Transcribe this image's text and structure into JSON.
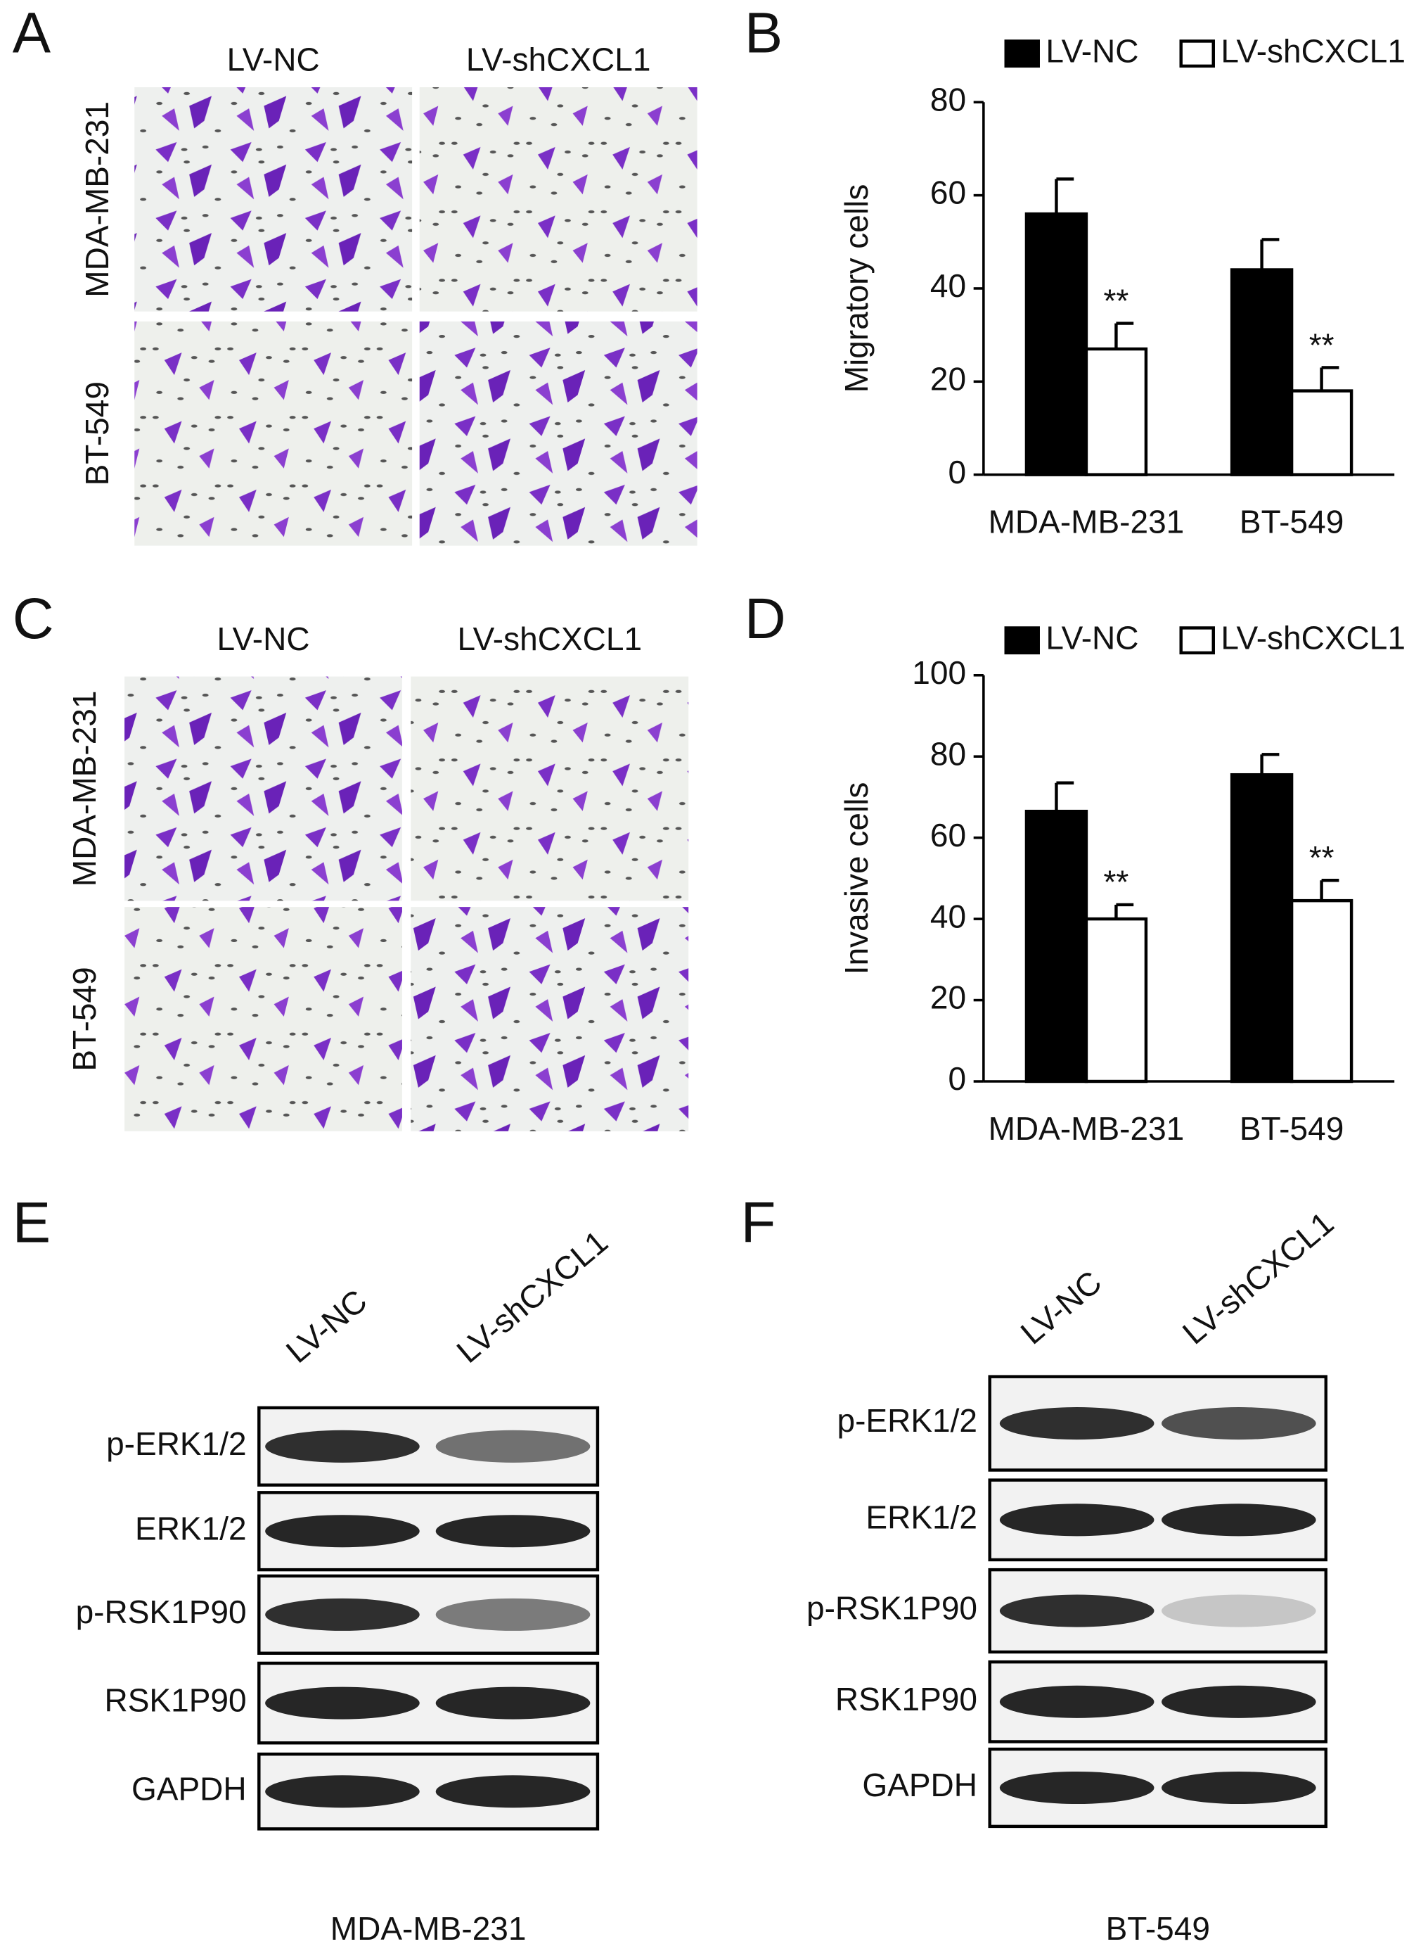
{
  "panel_labels": [
    "A",
    "B",
    "C",
    "D",
    "E",
    "F"
  ],
  "panel_a": {
    "columns": [
      "LV-NC",
      "LV-shCXCL1"
    ],
    "rows": [
      "MDA-MB-231",
      "BT-549"
    ]
  },
  "panel_c": {
    "columns": [
      "LV-NC",
      "LV-shCXCL1"
    ],
    "rows": [
      "MDA-MB-231",
      "BT-549"
    ]
  },
  "chart_data": [
    {
      "type": "bar",
      "ylabel": "Migratory cells",
      "categories": [
        "MDA-MB-231",
        "BT-549"
      ],
      "series": [
        {
          "name": "LV-NC",
          "color": "#000000",
          "values": [
            56,
            44
          ],
          "errors": [
            7.5,
            6.5
          ]
        },
        {
          "name": "LV-shCXCL1",
          "color": "#ffffff",
          "values": [
            27,
            18
          ],
          "errors": [
            5.5,
            5
          ],
          "annotations": [
            "**",
            "**"
          ]
        }
      ],
      "ylim": [
        0,
        80
      ],
      "yticks": [
        0,
        20,
        40,
        60,
        80
      ],
      "grid": false,
      "legend": "top"
    },
    {
      "type": "bar",
      "ylabel": "Invasive cells",
      "categories": [
        "MDA-MB-231",
        "BT-549"
      ],
      "series": [
        {
          "name": "LV-NC",
          "color": "#000000",
          "values": [
            66.5,
            75.5
          ],
          "errors": [
            7,
            5
          ]
        },
        {
          "name": "LV-shCXCL1",
          "color": "#ffffff",
          "values": [
            40,
            44.5
          ],
          "errors": [
            3.5,
            5
          ],
          "annotations": [
            "**",
            "**"
          ]
        }
      ],
      "ylim": [
        0,
        100
      ],
      "yticks": [
        0,
        20,
        40,
        60,
        80,
        100
      ],
      "grid": false,
      "legend": "top"
    }
  ],
  "panel_e": {
    "columns": [
      "LV-NC",
      "LV-shCXCL1"
    ],
    "proteins": [
      "p-ERK1/2",
      "ERK1/2",
      "p-RSK1P90",
      "RSK1P90",
      "GAPDH"
    ],
    "cell_line": "MDA-MB-231"
  },
  "panel_f": {
    "columns": [
      "LV-NC",
      "LV-shCXCL1"
    ],
    "proteins": [
      "p-ERK1/2",
      "ERK1/2",
      "p-RSK1P90",
      "RSK1P90",
      "GAPDH"
    ],
    "cell_line": "BT-549"
  }
}
